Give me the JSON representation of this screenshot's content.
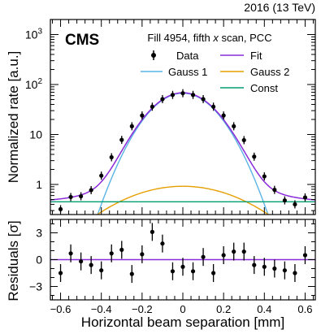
{
  "chart_data": {
    "type": "line",
    "energy_label": "2016 (13 TeV)",
    "experiment_label": "CMS",
    "annotation_parts": [
      "Fill 4954, fifth ",
      "x",
      " scan, PCC"
    ],
    "xlabel": "Horizontal beam separation [mm]",
    "xlim": [
      -0.65,
      0.65
    ],
    "xticks": [
      -0.6,
      -0.4,
      -0.2,
      0,
      0.2,
      0.4,
      0.6
    ],
    "xtick_labels": [
      "−0.6",
      "−0.4",
      "−0.2",
      "0",
      "0.2",
      "0.4",
      "0.6"
    ],
    "top_panel": {
      "ylabel": "Normalized rate [a.u.]",
      "yscale": "log",
      "ylim": [
        0.25,
        2000
      ],
      "yticks_major": [
        {
          "value": 1,
          "label": "1"
        },
        {
          "value": 10,
          "label": "10"
        },
        {
          "value": 100,
          "label_base": "10",
          "label_exp": "2"
        },
        {
          "value": 1000,
          "label_base": "10",
          "label_exp": "3"
        }
      ]
    },
    "bottom_panel": {
      "ylabel": "Residuals [σ]",
      "ylim": [
        -4.5,
        4.5
      ],
      "yticks": [
        -3,
        0,
        3
      ],
      "ytick_labels": [
        "−3",
        "0",
        "3"
      ]
    },
    "legend": {
      "placement": "top",
      "entries": [
        {
          "name": "Data",
          "marker": "point"
        },
        {
          "name": "Fit",
          "color": "#8b2bd9"
        },
        {
          "name": "Gauss 1",
          "color": "#5ab4e5"
        },
        {
          "name": "Gauss 2",
          "color": "#e69f00"
        },
        {
          "name": "Const",
          "color": "#009e73"
        }
      ]
    },
    "series": [
      {
        "name": "Data",
        "kind": "points",
        "x": [
          -0.6,
          -0.55,
          -0.5,
          -0.45,
          -0.4,
          -0.35,
          -0.3,
          -0.25,
          -0.2,
          -0.15,
          -0.1,
          -0.05,
          0,
          0.05,
          0.1,
          0.15,
          0.2,
          0.25,
          0.3,
          0.35,
          0.4,
          0.45,
          0.5,
          0.55,
          0.6
        ],
        "y": [
          0.32,
          0.56,
          0.58,
          0.77,
          1.5,
          3.5,
          7.8,
          14.6,
          24,
          36,
          51,
          62,
          67,
          62,
          51,
          36,
          24,
          14.6,
          7.7,
          3.6,
          1.45,
          0.78,
          0.48,
          0.4,
          0.55
        ],
        "yerr": [
          0.05,
          0.06,
          0.06,
          0.07,
          0.1,
          0.15,
          0.3,
          0.5,
          0.7,
          1,
          1.2,
          1.4,
          1.4,
          1.4,
          1.2,
          1,
          0.7,
          0.5,
          0.3,
          0.15,
          0.1,
          0.07,
          0.06,
          0.06,
          0.07
        ],
        "residuals": [
          -1.5,
          0.7,
          -0.2,
          -0.6,
          -1.2,
          0.7,
          1.1,
          -1.6,
          0.6,
          3.1,
          1.8,
          -1.3,
          -0.8,
          -1.3,
          0.3,
          -1.5,
          0.5,
          0.9,
          0.9,
          -0.6,
          -0.8,
          -1.0,
          -1.2,
          -1.5,
          0.5
        ],
        "residuals_err": [
          1,
          1,
          1,
          1,
          1,
          1,
          1,
          1,
          1,
          1,
          1,
          1,
          1,
          1,
          1,
          1,
          1,
          1,
          1,
          1,
          1,
          1,
          1,
          1,
          1
        ]
      },
      {
        "name": "Fit",
        "kind": "curve",
        "components": "Gauss 1 + Gauss 2 + Const",
        "color": "#8b2bd9"
      },
      {
        "name": "Gauss 1",
        "kind": "gaussian",
        "amplitude": 67,
        "mean": 0,
        "sigma": 0.125,
        "color": "#5ab4e5"
      },
      {
        "name": "Gauss 2",
        "kind": "gaussian",
        "amplitude": 0.92,
        "mean": 0,
        "sigma": 0.26,
        "color": "#e69f00"
      },
      {
        "name": "Const",
        "kind": "constant",
        "value": 0.45,
        "color": "#009e73"
      }
    ]
  }
}
